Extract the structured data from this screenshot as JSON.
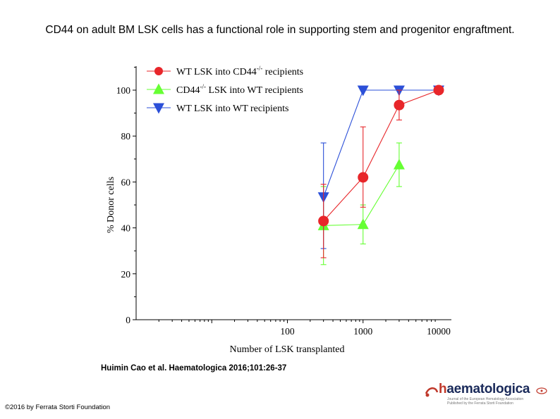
{
  "slide": {
    "title": "CD44 on adult BM LSK cells has a functional role in supporting stem and progenitor engraftment.",
    "citation": "Huimin Cao et al. Haematologica 2016;101:26-37",
    "copyright": "©2016 by Ferrata Storti Foundation"
  },
  "logo": {
    "mark": "h",
    "name": "aematologica",
    "sub1": "Journal of the European Hematology Association",
    "sub2": "Published by the Ferrata Storti Foundation"
  },
  "chart_data": {
    "type": "line",
    "title": "",
    "xlabel": "Number of LSK transplanted",
    "ylabel": "% Donor cells",
    "xscale": "log",
    "xlim": [
      1,
      10000
    ],
    "ylim": [
      0,
      110
    ],
    "x_ticks": [
      "100",
      "1000",
      "10000"
    ],
    "y_ticks": [
      "0",
      "20",
      "40",
      "60",
      "80",
      "100"
    ],
    "legend_position": "top-left",
    "grid": false,
    "series": [
      {
        "name_main": "WT LSK into CD44",
        "name_sup": "-/-",
        "name_tail": " recipients",
        "color": "#e8262a",
        "marker": "circle",
        "x": [
          300,
          1000,
          3000,
          10000
        ],
        "y": [
          43,
          62,
          93.5,
          100
        ],
        "err_lo": [
          16,
          13,
          6.5,
          0
        ],
        "err_hi": [
          16,
          22,
          6.5,
          0
        ]
      },
      {
        "name_main": "CD44",
        "name_sup": "-/-",
        "name_tail": " LSK into WT recipients",
        "color": "#66ff33",
        "marker": "triangle-up",
        "x": [
          300,
          1000,
          3000
        ],
        "y": [
          41,
          41.5,
          67.5
        ],
        "err_lo": [
          17,
          8.5,
          9.5
        ],
        "err_hi": [
          17,
          8.5,
          9.5
        ]
      },
      {
        "name_main": "WT LSK into WT recipients",
        "name_sup": "",
        "name_tail": "",
        "color": "#2b4fd8",
        "marker": "triangle-down",
        "x": [
          300,
          1000,
          3000,
          10000
        ],
        "y": [
          53.5,
          100,
          100,
          100
        ],
        "err_lo": [
          22.5,
          0,
          0,
          0
        ],
        "err_hi": [
          23.5,
          0,
          0,
          0
        ]
      }
    ]
  }
}
